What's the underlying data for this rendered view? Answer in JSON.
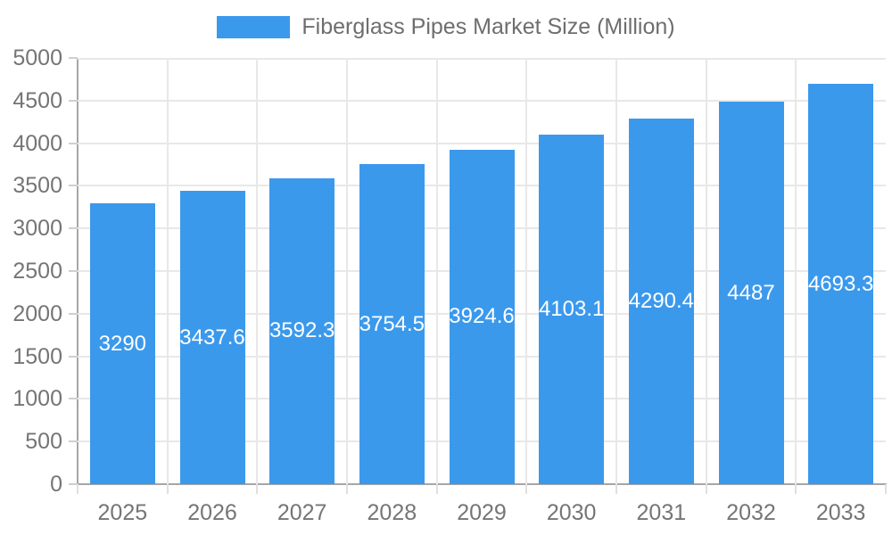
{
  "legend": {
    "series_label": "Fiberglass Pipes Market Size (Million)"
  },
  "chart_data": {
    "type": "bar",
    "title": "Fiberglass Pipes Market Size (Million)",
    "legend_position": "top",
    "categories": [
      "2025",
      "2026",
      "2027",
      "2028",
      "2029",
      "2030",
      "2031",
      "2032",
      "2033"
    ],
    "values": [
      3290,
      3437.6,
      3592.3,
      3754.5,
      3924.6,
      4103.1,
      4290.4,
      4487,
      4693.3
    ],
    "value_labels": [
      "3290",
      "3437.6",
      "3592.3",
      "3754.5",
      "3924.6",
      "4103.1",
      "4290.4",
      "4487",
      "4693.3"
    ],
    "xlabel": "",
    "ylabel": "",
    "ylim": [
      0,
      5000
    ],
    "y_ticks": [
      0,
      500,
      1000,
      1500,
      2000,
      2500,
      3000,
      3500,
      4000,
      4500,
      5000
    ],
    "grid": true,
    "colors": {
      "bar": "#3B99EC",
      "value_label": "#FFFFFF",
      "axis_text": "#757575",
      "legend_text": "#6E6E6E",
      "axis_line": "#A6A6A6",
      "gridline": "#E8E8E8",
      "y_tick": "#CFCFCF",
      "x_tick": "#E0E0E0",
      "background": "#FFFFFF"
    }
  }
}
